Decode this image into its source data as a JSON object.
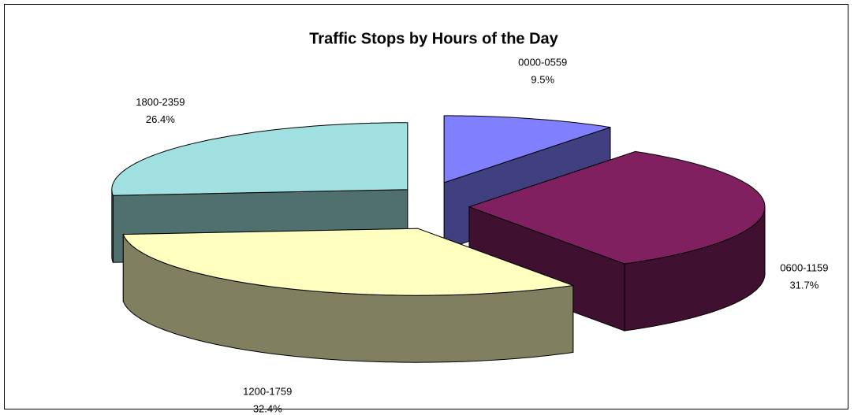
{
  "chart_data": {
    "type": "pie3d",
    "title": "Traffic Stops by Hours of the Day",
    "categories": [
      "0000-0559",
      "0600-1159",
      "1200-1759",
      "1800-2359"
    ],
    "values": [
      9.5,
      31.7,
      32.4,
      26.4
    ],
    "value_labels": [
      "9.5%",
      "31.7%",
      "32.4%",
      "26.4%"
    ],
    "colors": [
      "#8080ff",
      "#802060",
      "#ffffc0",
      "#a0e0e0"
    ],
    "side_colors": [
      "#404080",
      "#401030",
      "#808060",
      "#507070"
    ]
  }
}
